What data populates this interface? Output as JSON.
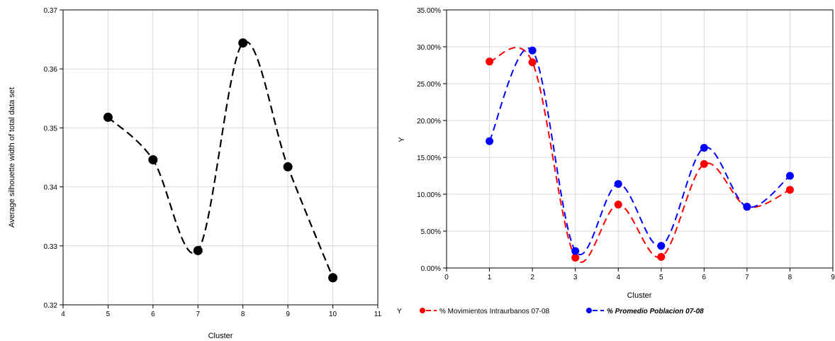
{
  "chart_data": [
    {
      "type": "line",
      "xlabel": "Cluster",
      "ylabel": "Average silhouette width of total data set",
      "xlim": [
        4,
        11
      ],
      "ylim": [
        0.32,
        0.37
      ],
      "x_ticks": [
        "4",
        "5",
        "6",
        "7",
        "8",
        "9",
        "10",
        "11"
      ],
      "y_ticks": [
        "0.32",
        "0.33",
        "0.34",
        "0.35",
        "0.36",
        "0.37"
      ],
      "grid": true,
      "series": [
        {
          "x": [
            5,
            6,
            7,
            8,
            9,
            10
          ],
          "values": [
            0.3518,
            0.3446,
            0.3292,
            0.3644,
            0.3434,
            0.3246
          ],
          "color": "#000000",
          "line_style": "dashed-smooth"
        }
      ]
    },
    {
      "type": "line",
      "xlabel": "Cluster",
      "ylabel": "Y",
      "xlim": [
        0,
        9
      ],
      "ylim": [
        0,
        35
      ],
      "x_ticks": [
        "0",
        "1",
        "2",
        "3",
        "4",
        "5",
        "6",
        "7",
        "8",
        "9"
      ],
      "y_ticks": [
        "0.00%",
        "5.00%",
        "10.00%",
        "15.00%",
        "20.00%",
        "25.00%",
        "30.00%",
        "35.00%"
      ],
      "grid": true,
      "legend_title": "Y",
      "legend_position": "bottom",
      "series": [
        {
          "name": "% Movimientos Intraurbanos 07-08",
          "x": [
            1,
            2,
            3,
            4,
            5,
            6,
            7,
            8
          ],
          "values": [
            28.0,
            27.9,
            1.4,
            8.6,
            1.5,
            14.1,
            8.3,
            10.6
          ],
          "color": "#ff0000",
          "line_style": "dashed-smooth"
        },
        {
          "name": "% Promedio Poblacion 07-08",
          "x": [
            1,
            2,
            3,
            4,
            5,
            6,
            7,
            8
          ],
          "values": [
            17.2,
            29.5,
            2.3,
            11.4,
            3.0,
            16.3,
            8.3,
            12.5
          ],
          "color": "#0000ff",
          "line_style": "dashed-smooth"
        }
      ]
    }
  ]
}
